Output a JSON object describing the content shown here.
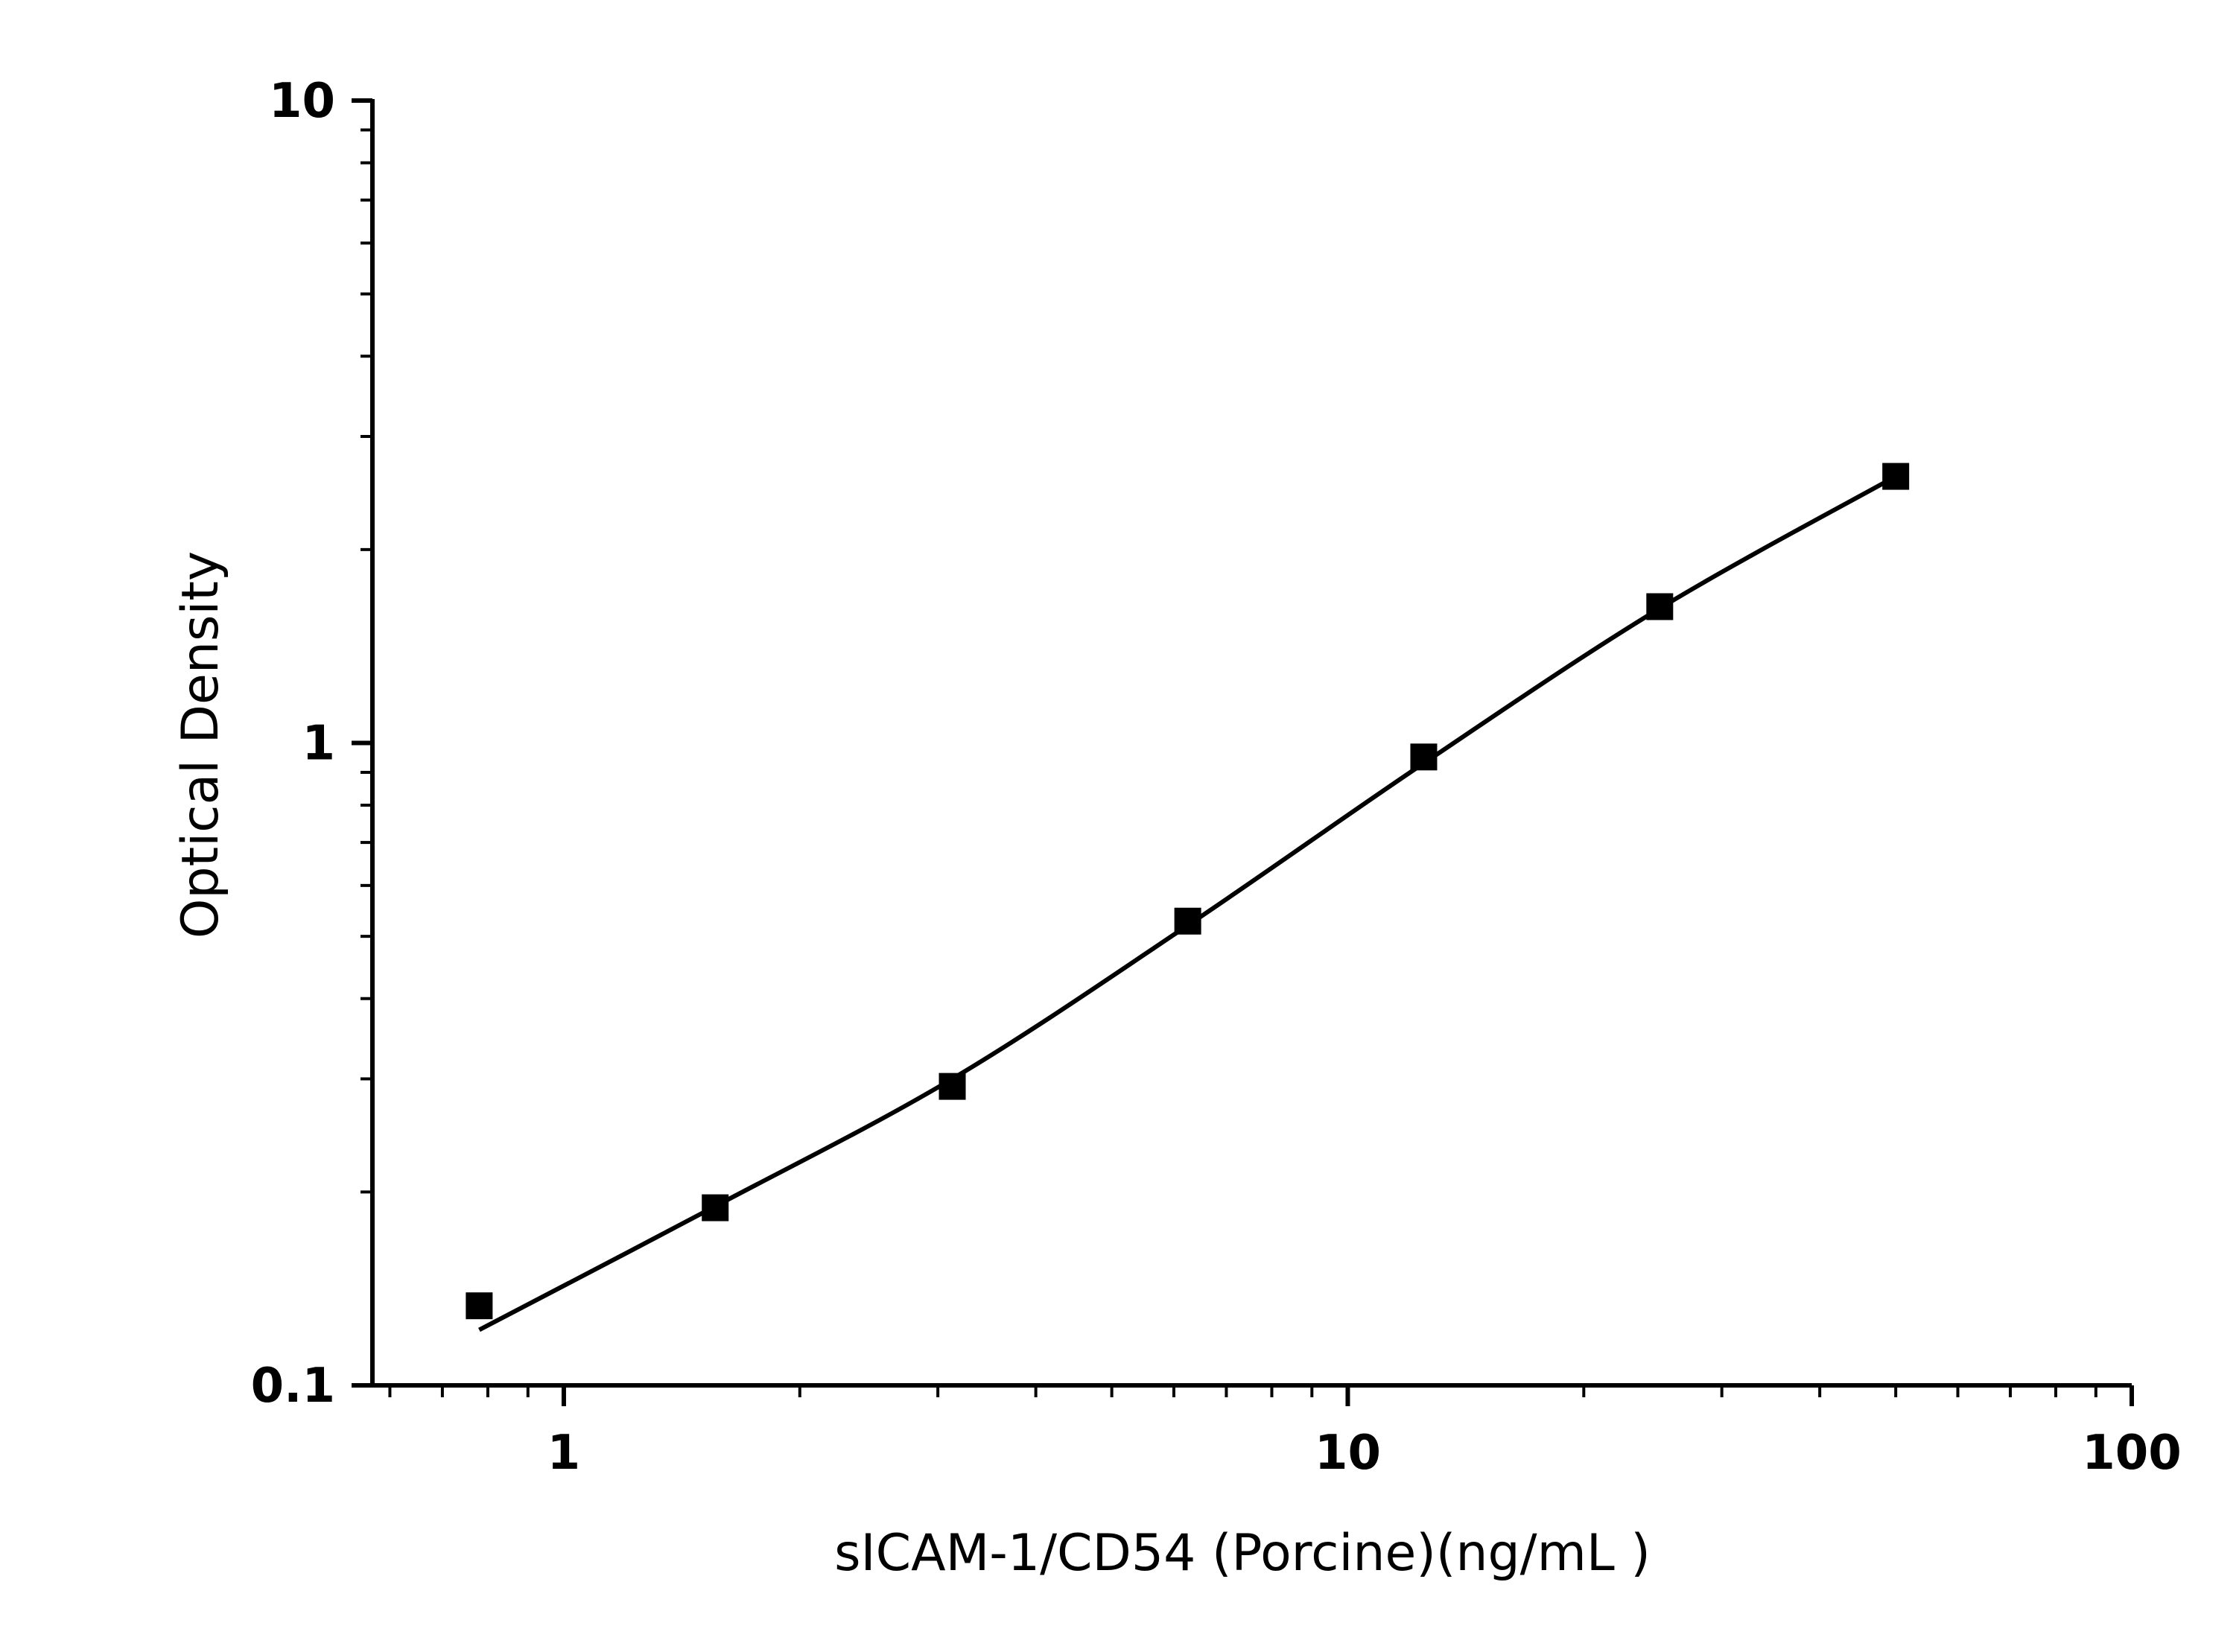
{
  "chart_data": {
    "type": "scatter",
    "title": "",
    "xlabel": "sICAM-1/CD54 (Porcine)(ng/mL )",
    "ylabel": "Optical Density",
    "xscale": "log",
    "yscale": "log",
    "xlim": [
      0.57,
      100
    ],
    "ylim": [
      0.1,
      10
    ],
    "x_tick_labels": [
      "1",
      "10",
      "100"
    ],
    "y_tick_labels": [
      "0.1",
      "1",
      "10"
    ],
    "grid": false,
    "legend": "none",
    "series": [
      {
        "marker": "square",
        "x": [
          0.78,
          1.56,
          3.13,
          6.25,
          12.5,
          25,
          50
        ],
        "y": [
          0.133,
          0.189,
          0.292,
          0.528,
          0.951,
          1.63,
          2.6
        ]
      }
    ],
    "fit_curve": {
      "style": "smooth line through points",
      "x": [
        0.78,
        1.56,
        3.13,
        6.25,
        12.5,
        25,
        50
      ],
      "y": [
        0.122,
        0.19,
        0.3,
        0.52,
        0.93,
        1.62,
        2.6
      ]
    },
    "colors": {
      "marks": "#000000",
      "axes": "#000000",
      "background": "#ffffff"
    }
  }
}
